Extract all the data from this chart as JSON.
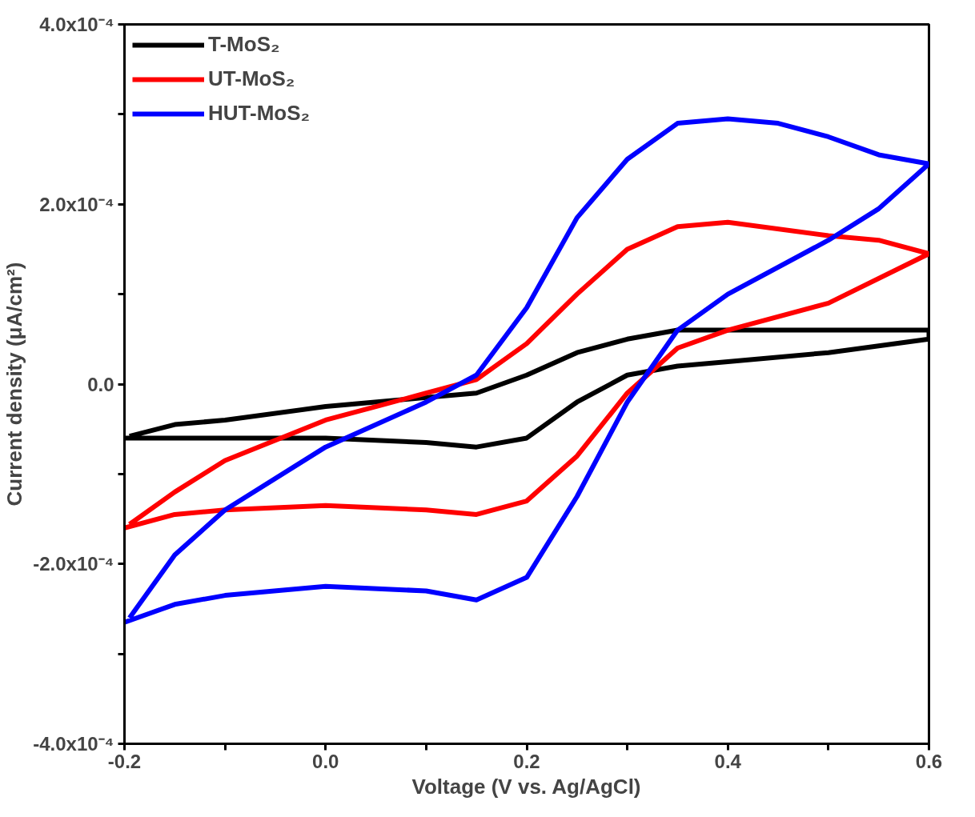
{
  "chart_data": {
    "type": "line",
    "xlabel": "Voltage (V vs. Ag/AgCl)",
    "ylabel": "Current density (μA/cm²)",
    "xlim": [
      -0.2,
      0.6
    ],
    "ylim": [
      -0.0004,
      0.0004
    ],
    "xticks": [
      {
        "value": -0.2,
        "label": "-0.2"
      },
      {
        "value": -0.1,
        "label": null
      },
      {
        "value": 0,
        "label": "0.0"
      },
      {
        "value": 0.1,
        "label": null
      },
      {
        "value": 0.2,
        "label": "0.2"
      },
      {
        "value": 0.3,
        "label": null
      },
      {
        "value": 0.4,
        "label": "0.4"
      },
      {
        "value": 0.5,
        "label": null
      },
      {
        "value": 0.6,
        "label": "0.6"
      }
    ],
    "yticks": [
      {
        "value": -0.0004,
        "label": "-4.0x10⁻⁴"
      },
      {
        "value": -0.0003,
        "label": null
      },
      {
        "value": -0.0002,
        "label": "-2.0x10⁻⁴"
      },
      {
        "value": -0.0001,
        "label": null
      },
      {
        "value": 0,
        "label": "0.0"
      },
      {
        "value": 0.0001,
        "label": null
      },
      {
        "value": 0.0002,
        "label": "2.0x10⁻⁴"
      },
      {
        "value": 0.0003,
        "label": null
      },
      {
        "value": 0.0004,
        "label": "4.0x10⁻⁴"
      }
    ],
    "legend": "top left",
    "grid": false,
    "series": [
      {
        "name": "T-MoS₂",
        "color": "#000000",
        "x": [
          -0.2,
          -0.15,
          -0.1,
          0.0,
          0.1,
          0.15,
          0.2,
          0.25,
          0.3,
          0.35,
          0.4,
          0.5,
          0.6,
          0.6,
          0.5,
          0.4,
          0.35,
          0.3,
          0.25,
          0.2,
          0.15,
          0.1,
          0.0,
          -0.1,
          -0.15,
          -0.195
        ],
        "values": [
          -6e-05,
          -6e-05,
          -6e-05,
          -6e-05,
          -6.5e-05,
          -7e-05,
          -6e-05,
          -2e-05,
          1e-05,
          2e-05,
          2.5e-05,
          3.5e-05,
          5e-05,
          6e-05,
          6e-05,
          6e-05,
          6e-05,
          5e-05,
          3.5e-05,
          1e-05,
          -1e-05,
          -1.5e-05,
          -2.5e-05,
          -4e-05,
          -4.5e-05,
          -5.8e-05
        ]
      },
      {
        "name": "UT-MoS₂",
        "color": "#ff0000",
        "x": [
          -0.2,
          -0.15,
          -0.1,
          0.0,
          0.1,
          0.15,
          0.2,
          0.25,
          0.3,
          0.35,
          0.4,
          0.5,
          0.6,
          0.6,
          0.55,
          0.5,
          0.4,
          0.35,
          0.3,
          0.25,
          0.2,
          0.15,
          0.1,
          0.0,
          -0.1,
          -0.15,
          -0.195
        ],
        "values": [
          -0.00016,
          -0.000145,
          -0.00014,
          -0.000135,
          -0.00014,
          -0.000145,
          -0.00013,
          -8e-05,
          -1e-05,
          4e-05,
          6e-05,
          9e-05,
          0.000145,
          0.000145,
          0.00016,
          0.000165,
          0.00018,
          0.000175,
          0.00015,
          0.0001,
          4.5e-05,
          5e-06,
          -1e-05,
          -4e-05,
          -8.5e-05,
          -0.00012,
          -0.000156
        ]
      },
      {
        "name": "HUT-MoS₂",
        "color": "#0000ff",
        "x": [
          -0.2,
          -0.15,
          -0.1,
          0.0,
          0.1,
          0.15,
          0.2,
          0.25,
          0.3,
          0.35,
          0.4,
          0.5,
          0.55,
          0.6,
          0.6,
          0.55,
          0.5,
          0.45,
          0.4,
          0.35,
          0.3,
          0.25,
          0.2,
          0.15,
          0.1,
          0.0,
          -0.1,
          -0.15,
          -0.195
        ],
        "values": [
          -0.000265,
          -0.000245,
          -0.000235,
          -0.000225,
          -0.00023,
          -0.00024,
          -0.000215,
          -0.000125,
          -2e-05,
          6e-05,
          0.0001,
          0.00016,
          0.000195,
          0.000245,
          0.000245,
          0.000255,
          0.000275,
          0.00029,
          0.000295,
          0.00029,
          0.00025,
          0.000185,
          8.5e-05,
          1e-05,
          -2e-05,
          -7e-05,
          -0.00014,
          -0.00019,
          -0.00026
        ]
      }
    ]
  }
}
